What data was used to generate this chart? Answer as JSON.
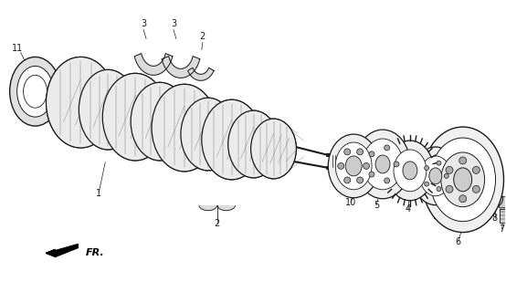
{
  "background_color": "#ffffff",
  "line_color": "#1a1a1a",
  "label_color": "#000000",
  "fig_width": 5.54,
  "fig_height": 3.2,
  "dpi": 100
}
